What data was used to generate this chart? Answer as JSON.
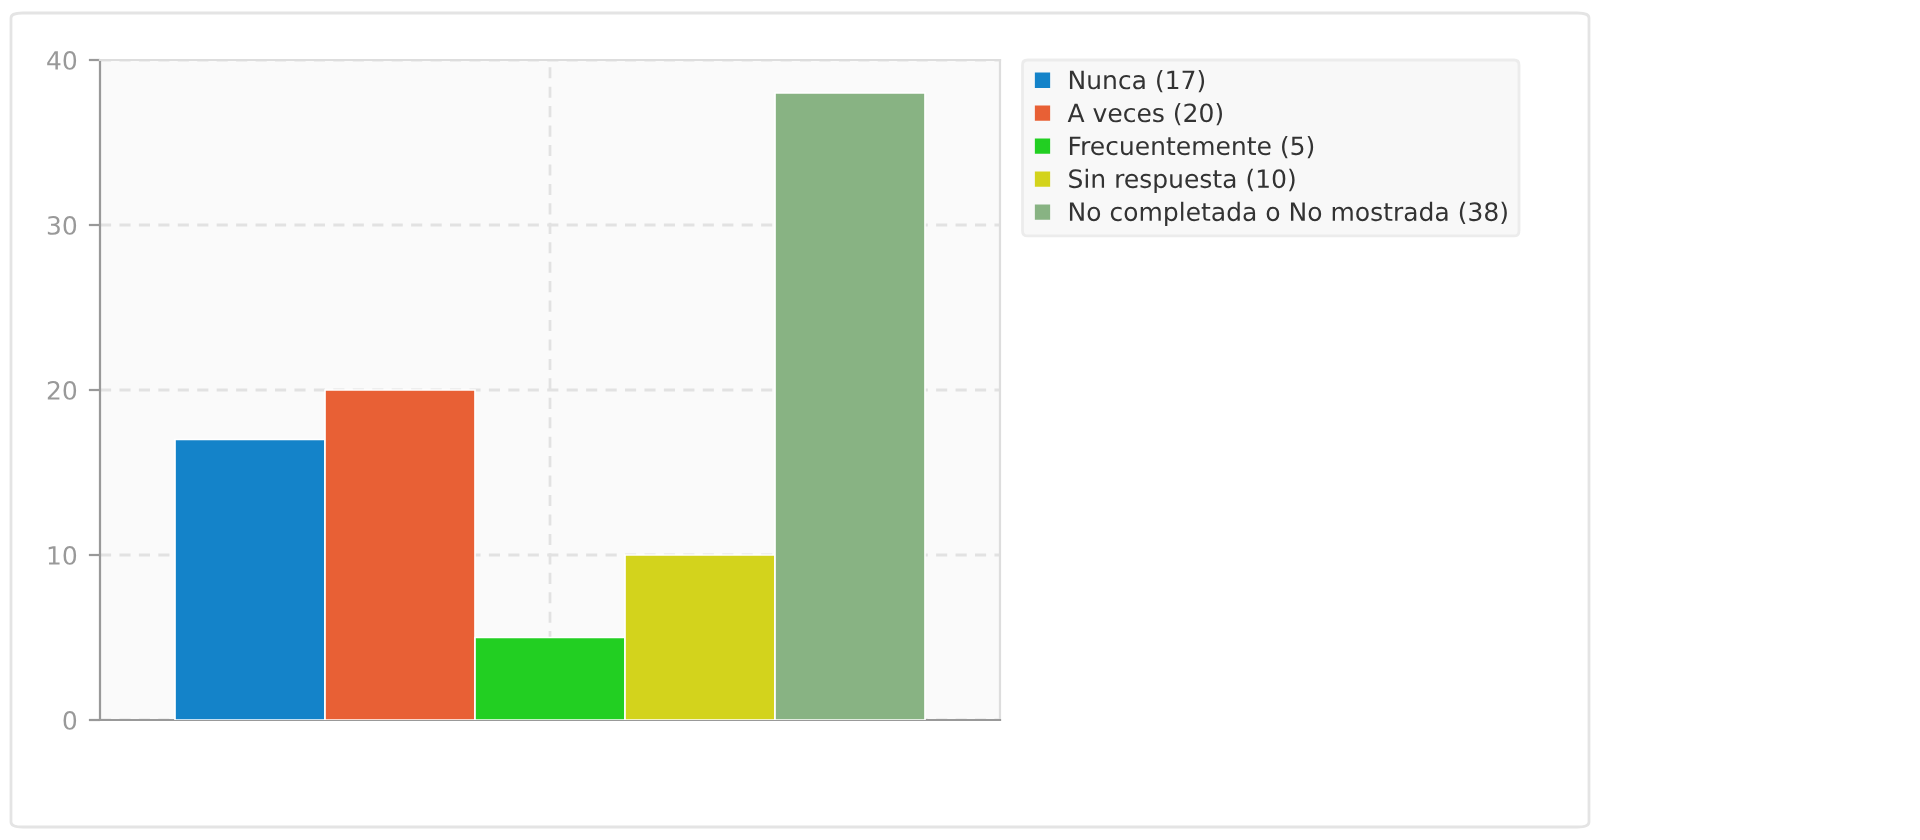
{
  "chart_data": {
    "type": "bar",
    "categories": [
      null
    ],
    "series": [
      {
        "name": "Nunca (17)",
        "color": "#1483c9",
        "values": [
          17
        ]
      },
      {
        "name": "A veces (20)",
        "color": "#e86035",
        "values": [
          20
        ]
      },
      {
        "name": "Frecuentemente (5)",
        "color": "#22cf22",
        "values": [
          5
        ]
      },
      {
        "name": "Sin respuesta (10)",
        "color": "#d3d31c",
        "values": [
          10
        ]
      },
      {
        "name": "No completada o No mostrada (38)",
        "color": "#88b383",
        "values": [
          38
        ]
      }
    ],
    "ylim": [
      0,
      40
    ],
    "yticks": [
      0,
      10,
      20,
      30,
      40
    ],
    "grid": true,
    "legend": "top right",
    "tick_labels": "y"
  }
}
